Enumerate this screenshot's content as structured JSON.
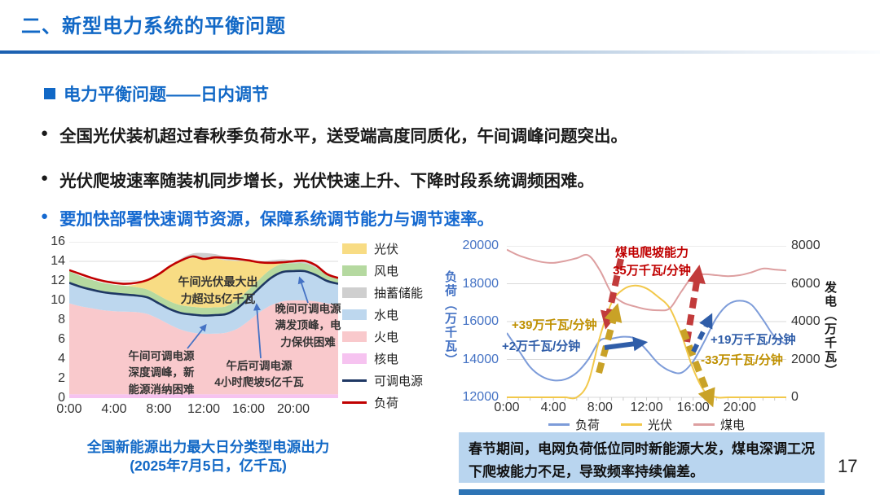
{
  "slide": {
    "title": "二、新型电力系统的平衡问题",
    "page_number": "17",
    "section_heading": "电力平衡问题——日内调节",
    "bullet1": "全国光伏装机超过春秋季负荷水平，送受端高度同质化，午间调峰问题突出。",
    "bullet2": "光伏爬坡速率随装机同步增长，光伏快速上升、下降时段系统调频困难。",
    "bullet3": {
      "prefix": "要加快部署",
      "bold": "快速调节资源",
      "suffix": "，保障系统调节能力与调节速率。"
    },
    "note_box": "春节期间，电网负荷低位同时新能源大发，煤电深调工况下爬坡能力不足，导致频率持续偏差。",
    "colors": {
      "title_blue": "#1168C6",
      "note_box_bg": "#B9D5EF",
      "bottom_strip": "#2E74B5",
      "annotation_red": "#C00000",
      "annotation_gold": "#BF9000",
      "annotation_blue": "#2F5DA8"
    }
  },
  "chart_data": [
    {
      "type": "area",
      "title": "全国新能源出力最大日分类型电源出力",
      "subtitle": "(2025年7月5日，亿千瓦)",
      "xlabel": "",
      "ylabel": "",
      "ylim": [
        0,
        16
      ],
      "yticks": [
        16,
        14,
        12,
        10,
        8,
        6,
        4,
        2,
        0
      ],
      "xticks": [
        "0:00",
        "4:00",
        "8:00",
        "12:00",
        "16:00",
        "20:00"
      ],
      "grid": true,
      "legend_position": "right",
      "x_hours": [
        0,
        1,
        2,
        3,
        4,
        5,
        6,
        7,
        8,
        9,
        10,
        11,
        12,
        13,
        14,
        15,
        16,
        17,
        18,
        19,
        20,
        21,
        22,
        23,
        24
      ],
      "stack_series": [
        {
          "name": "核电",
          "color": "#F6C3F0",
          "values": [
            0.4,
            0.4,
            0.4,
            0.4,
            0.4,
            0.4,
            0.4,
            0.4,
            0.4,
            0.4,
            0.4,
            0.4,
            0.4,
            0.4,
            0.4,
            0.4,
            0.4,
            0.4,
            0.4,
            0.4,
            0.4,
            0.4,
            0.4,
            0.4,
            0.4
          ]
        },
        {
          "name": "火电",
          "color": "#F9C9CC",
          "values": [
            9.3,
            9.0,
            8.8,
            8.6,
            8.5,
            8.45,
            8.4,
            8.2,
            7.7,
            7.1,
            6.6,
            6.3,
            6.2,
            6.2,
            6.3,
            6.7,
            7.5,
            8.4,
            9.1,
            9.5,
            9.6,
            9.6,
            9.5,
            9.3,
            9.1
          ]
        },
        {
          "name": "水电",
          "color": "#BDD7EE",
          "values": [
            2.1,
            2.0,
            1.9,
            1.85,
            1.8,
            1.75,
            1.7,
            1.7,
            1.6,
            1.6,
            1.7,
            1.85,
            1.85,
            1.9,
            1.9,
            2.1,
            2.3,
            2.5,
            2.8,
            3.0,
            3.0,
            3.0,
            2.7,
            2.3,
            2.2
          ]
        },
        {
          "name": "风电",
          "color": "#B5D9A0",
          "values": [
            1.2,
            1.1,
            1.0,
            0.95,
            0.9,
            0.9,
            0.85,
            0.8,
            0.8,
            0.8,
            0.8,
            0.8,
            0.8,
            0.8,
            0.8,
            0.85,
            0.9,
            0.9,
            0.9,
            0.85,
            0.8,
            0.8,
            0.75,
            0.7,
            0.7
          ]
        },
        {
          "name": "光伏",
          "color": "#F8DC84",
          "values": [
            0,
            0,
            0,
            0,
            0,
            0,
            0.3,
            1.0,
            2.2,
            3.5,
            4.5,
            5.0,
            5.1,
            5.0,
            4.7,
            4.0,
            2.9,
            1.6,
            0.6,
            0.1,
            0,
            0,
            0,
            0,
            0
          ]
        },
        {
          "name": "抽蓄储能",
          "color": "#CFCFCF",
          "values": [
            0,
            0,
            0,
            0,
            0,
            0,
            0,
            0,
            0,
            0,
            0.3,
            0.45,
            0.5,
            0.45,
            0.35,
            0.2,
            0.1,
            0.15,
            0.3,
            0.35,
            0.3,
            0.25,
            0.15,
            0.05,
            0
          ]
        }
      ],
      "line_series": [
        {
          "name": "可调电源",
          "color": "#1F3864",
          "width": 2.6,
          "values": [
            11.8,
            11.4,
            11.1,
            10.85,
            10.7,
            10.6,
            10.5,
            10.3,
            9.7,
            9.1,
            8.7,
            8.55,
            8.45,
            8.5,
            8.6,
            9.2,
            10.2,
            11.3,
            12.3,
            12.9,
            13.0,
            13.0,
            12.6,
            12.0,
            11.7
          ]
        },
        {
          "name": "负荷",
          "color": "#C00000",
          "width": 2.6,
          "values": [
            13.1,
            12.7,
            12.3,
            12.0,
            11.8,
            11.7,
            11.8,
            12.1,
            12.7,
            13.5,
            14.1,
            14.5,
            14.25,
            14.4,
            14.35,
            14.25,
            14.1,
            13.9,
            13.85,
            13.9,
            14.0,
            14.05,
            13.6,
            12.7,
            12.3
          ]
        }
      ],
      "legend": [
        {
          "label": "光伏",
          "color": "#F8DC84",
          "swatch": "area"
        },
        {
          "label": "风电",
          "color": "#B5D9A0",
          "swatch": "area"
        },
        {
          "label": "抽蓄储能",
          "color": "#CFCFCF",
          "swatch": "area"
        },
        {
          "label": "水电",
          "color": "#BDD7EE",
          "swatch": "area"
        },
        {
          "label": "火电",
          "color": "#F9C9CC",
          "swatch": "area"
        },
        {
          "label": "核电",
          "color": "#F6C3F0",
          "swatch": "area"
        },
        {
          "label": "可调电源",
          "color": "#1F3864",
          "swatch": "line"
        },
        {
          "label": "负荷",
          "color": "#C00000",
          "swatch": "line"
        }
      ],
      "annotations": [
        {
          "text": "午间光伏最大出\n力超过5亿千瓦"
        },
        {
          "text": "晚间可调电源\n满发顶峰，电\n力保供困难"
        },
        {
          "text": "午间可调电源\n深度调峰，新\n能源消纳困难"
        },
        {
          "text": "午后可调电源\n4小时爬坡5亿千瓦"
        }
      ]
    },
    {
      "type": "line",
      "title": "",
      "grid": true,
      "legend_position": "bottom",
      "xticks": [
        "0:00",
        "4:00",
        "8:00",
        "12:00",
        "16:00",
        "20:00"
      ],
      "x_hours": [
        0,
        1,
        2,
        3,
        4,
        5,
        6,
        7,
        8,
        9,
        10,
        11,
        12,
        13,
        14,
        15,
        16,
        17,
        18,
        19,
        20,
        21,
        22,
        23,
        24
      ],
      "left_axis": {
        "label": "负荷（万千瓦）",
        "ylim": [
          12000,
          20000
        ],
        "ticks": [
          20000,
          18000,
          16000,
          14000,
          12000
        ],
        "color": "#4472C4"
      },
      "right_axis": {
        "label": "发电（万千瓦）",
        "ylim": [
          0,
          8000
        ],
        "ticks": [
          8000,
          6000,
          4000,
          2000,
          0
        ],
        "color": "#1a1a1a"
      },
      "series": [
        {
          "name": "负荷",
          "axis": "left",
          "color": "#7D9CD9",
          "values": [
            15400,
            14500,
            13600,
            13100,
            12900,
            12950,
            13300,
            14000,
            15000,
            15100,
            15200,
            15100,
            14500,
            13800,
            13400,
            13300,
            13900,
            15000,
            16200,
            16900,
            17100,
            16900,
            16100,
            15200,
            14800
          ]
        },
        {
          "name": "光伏",
          "axis": "right",
          "color": "#F2C84B",
          "values": [
            0,
            0,
            0,
            0,
            0,
            0,
            0,
            800,
            3200,
            5000,
            5700,
            5900,
            5750,
            5300,
            4700,
            3300,
            1500,
            300,
            0,
            0,
            0,
            0,
            0,
            0,
            0
          ]
        },
        {
          "name": "煤电",
          "axis": "right",
          "color": "#DD9FA0",
          "values": [
            7800,
            7500,
            7300,
            7150,
            7100,
            7200,
            7350,
            7500,
            6700,
            5500,
            5000,
            4800,
            4650,
            4600,
            4700,
            5600,
            6400,
            6500,
            6450,
            6400,
            6450,
            6600,
            6800,
            6750,
            6700
          ]
        }
      ],
      "legend": [
        {
          "label": "负荷",
          "color": "#7D9CD9"
        },
        {
          "label": "光伏",
          "color": "#F2C84B"
        },
        {
          "label": "煤电",
          "color": "#DD9FA0"
        }
      ],
      "annotations": [
        {
          "text": "煤电爬坡能力\n35万千瓦/分钟",
          "color": "#C00000"
        },
        {
          "text": "+39万千瓦/分钟",
          "color": "#BF9000"
        },
        {
          "text": "+2万千瓦/分钟",
          "color": "#2F5DA8"
        },
        {
          "text": "+19万千瓦/分钟",
          "color": "#2F5DA8"
        },
        {
          "text": "-33万千瓦/分钟",
          "color": "#BF9000"
        }
      ]
    }
  ]
}
